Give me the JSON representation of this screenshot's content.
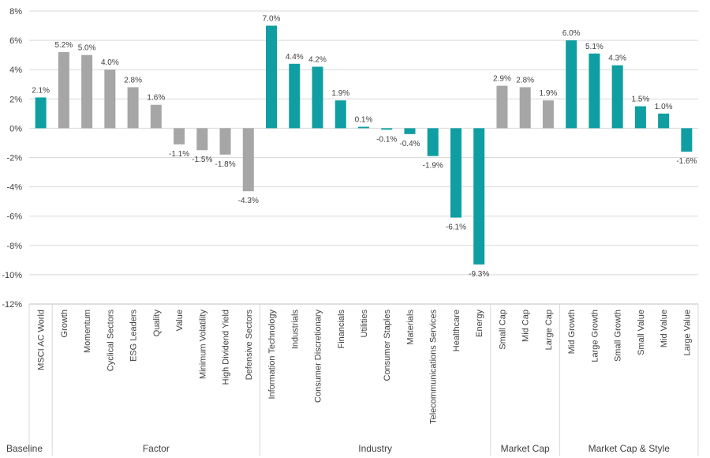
{
  "chart_data": {
    "type": "bar",
    "title": "",
    "xlabel": "",
    "ylabel": "",
    "ylim": [
      -12,
      8
    ],
    "yticks": [
      -12,
      -10,
      -8,
      -6,
      -4,
      -2,
      0,
      2,
      4,
      6,
      8
    ],
    "ytick_labels": [
      "-12%",
      "-10%",
      "-8%",
      "-6%",
      "-4%",
      "-2%",
      "0%",
      "2%",
      "4%",
      "6%",
      "8%"
    ],
    "grid": true,
    "legend": "none",
    "colors": {
      "teal": "#0f9ea1",
      "gray": "#a6a6a6"
    },
    "categories": [
      "MSCI AC World",
      "Growth",
      "Momentum",
      "Cyclical Sectors",
      "ESG Leaders",
      "Quality",
      "Value",
      "Minimum Volatility",
      "High Dividend Yield",
      "Defensive Sectors",
      "Information Technology",
      "Industrials",
      "Consumer Discretionary",
      "Financials",
      "Utilities",
      "Consumer Staples",
      "Materials",
      "Telecommunications Services",
      "Healthcare",
      "Energy",
      "Small Cap",
      "Mid Cap",
      "Large Cap",
      "Mid Growth",
      "Large Growth",
      "Small Growth",
      "Small Value",
      "Mid Value",
      "Large Value"
    ],
    "values": [
      2.1,
      5.2,
      5.0,
      4.0,
      2.8,
      1.6,
      -1.1,
      -1.5,
      -1.8,
      -4.3,
      7.0,
      4.4,
      4.2,
      1.9,
      0.1,
      -0.1,
      -0.4,
      -1.9,
      -6.1,
      -9.3,
      2.9,
      2.8,
      1.9,
      6.0,
      5.1,
      4.3,
      1.5,
      1.0,
      -1.6
    ],
    "data_labels": [
      "2.1%",
      "5.2%",
      "5.0%",
      "4.0%",
      "2.8%",
      "1.6%",
      "-1.1%",
      "-1.5%",
      "-1.8%",
      "-4.3%",
      "7.0%",
      "4.4%",
      "4.2%",
      "1.9%",
      "0.1%",
      "-0.1%",
      "-0.4%",
      "-1.9%",
      "-6.1%",
      "-9.3%",
      "2.9%",
      "2.8%",
      "1.9%",
      "6.0%",
      "5.1%",
      "4.3%",
      "1.5%",
      "1.0%",
      "-1.6%"
    ],
    "bar_colors": [
      "teal",
      "gray",
      "gray",
      "gray",
      "gray",
      "gray",
      "gray",
      "gray",
      "gray",
      "gray",
      "teal",
      "teal",
      "teal",
      "teal",
      "teal",
      "teal",
      "teal",
      "teal",
      "teal",
      "teal",
      "gray",
      "gray",
      "gray",
      "teal",
      "teal",
      "teal",
      "teal",
      "teal",
      "teal"
    ],
    "groups": [
      {
        "name": "Baseline",
        "count": 1
      },
      {
        "name": "Factor",
        "count": 9
      },
      {
        "name": "Industry",
        "count": 10
      },
      {
        "name": "Market Cap",
        "count": 3
      },
      {
        "name": "Market Cap & Style",
        "count": 6
      }
    ]
  }
}
